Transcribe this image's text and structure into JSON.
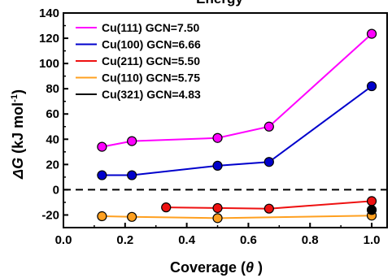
{
  "chart_data": {
    "type": "line",
    "title": "Energy",
    "xlabel_main": "Coverage (",
    "xlabel_symbol": "θ",
    "xlabel_close": " )",
    "ylabel_symbol": "ΔG",
    "ylabel_unit_open": " (kJ mol",
    "ylabel_unit_sup": "-1",
    "ylabel_unit_close": ")",
    "xlim": [
      0.0,
      1.05
    ],
    "ylim": [
      -30,
      140
    ],
    "x_ticks": [
      "0.0",
      "0.2",
      "0.4",
      "0.6",
      "0.8",
      "1.0"
    ],
    "x_tick_values": [
      0.0,
      0.2,
      0.4,
      0.6,
      0.8,
      1.0
    ],
    "y_ticks": [
      "-20",
      "0",
      "20",
      "40",
      "60",
      "80",
      "100",
      "120",
      "140"
    ],
    "y_tick_values": [
      -20,
      0,
      20,
      40,
      60,
      80,
      100,
      120,
      140
    ],
    "reference_line": {
      "y": 0,
      "style": "dashed",
      "color": "#000000"
    },
    "legend_position": "top-left",
    "series": [
      {
        "name": "Cu(111) GCN=7.50",
        "color": "#ff00ff",
        "points": [
          [
            0.125,
            34
          ],
          [
            0.222,
            38.5
          ],
          [
            0.5,
            41
          ],
          [
            0.667,
            50
          ],
          [
            1.0,
            123.5
          ]
        ]
      },
      {
        "name": "Cu(100) GCN=6.66",
        "color": "#0000cc",
        "points": [
          [
            0.125,
            11.5
          ],
          [
            0.222,
            11.5
          ],
          [
            0.5,
            19
          ],
          [
            0.667,
            22
          ],
          [
            1.0,
            82
          ]
        ]
      },
      {
        "name": "Cu(211) GCN=5.50",
        "color": "#ee1111",
        "points": [
          [
            0.333,
            -14
          ],
          [
            0.5,
            -14.5
          ],
          [
            0.667,
            -15
          ],
          [
            1.0,
            -9
          ]
        ]
      },
      {
        "name": "Cu(110) GCN=5.75",
        "color": "#ffa020",
        "points": [
          [
            0.125,
            -21
          ],
          [
            0.222,
            -21.5
          ],
          [
            0.5,
            -22.5
          ],
          [
            1.0,
            -20.5
          ]
        ]
      },
      {
        "name": "Cu(321) GCN=4.83",
        "color": "#000000",
        "points": [
          [
            1.0,
            -16
          ]
        ]
      }
    ]
  }
}
